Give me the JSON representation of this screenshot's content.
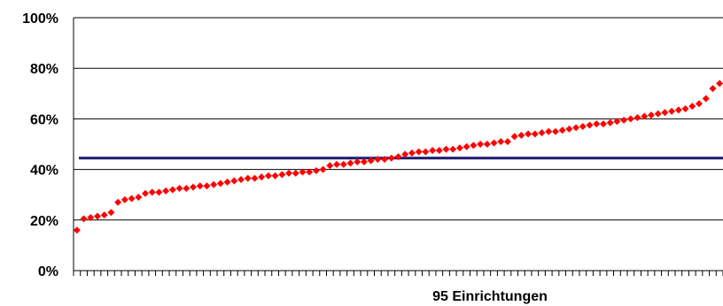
{
  "chart_data": {
    "type": "scatter",
    "title": "",
    "xlabel": "95 Einrichtungen",
    "ylabel": "",
    "ylim": [
      0,
      100
    ],
    "y_unit": "%",
    "grid": true,
    "y_ticks": [
      {
        "value": 0,
        "label": "0%"
      },
      {
        "value": 20,
        "label": "20%"
      },
      {
        "value": 40,
        "label": "40%"
      },
      {
        "value": 60,
        "label": "60%"
      },
      {
        "value": 80,
        "label": "80%"
      },
      {
        "value": 100,
        "label": "100%"
      }
    ],
    "x_count": 95,
    "reference_line": {
      "value": 44.5,
      "color": "#1a1a6e"
    },
    "marker_color": "#ff0000",
    "values": [
      16,
      20.5,
      21,
      21.5,
      22,
      23,
      27,
      28,
      28.5,
      29,
      30.5,
      31,
      31,
      31.5,
      32,
      32.5,
      32.5,
      33,
      33.5,
      33.5,
      34,
      34.5,
      35,
      35.5,
      36,
      36.5,
      36.5,
      37,
      37.5,
      37.5,
      38,
      38.5,
      38.5,
      39,
      39,
      39.5,
      40,
      41.5,
      42,
      42,
      42.5,
      43,
      43,
      43.5,
      44,
      44,
      44.5,
      45,
      46,
      46.5,
      47,
      47,
      47.5,
      47.5,
      48,
      48,
      48.5,
      49,
      49.5,
      50,
      50,
      50.5,
      51,
      51,
      53,
      53.5,
      54,
      54,
      54.5,
      55,
      55,
      55.5,
      56,
      56.5,
      57,
      57.5,
      58,
      58,
      58.5,
      59,
      59.5,
      60,
      60.5,
      61,
      61.5,
      62,
      62.5,
      63,
      63.5,
      64,
      65,
      66,
      68,
      72,
      74
    ]
  }
}
